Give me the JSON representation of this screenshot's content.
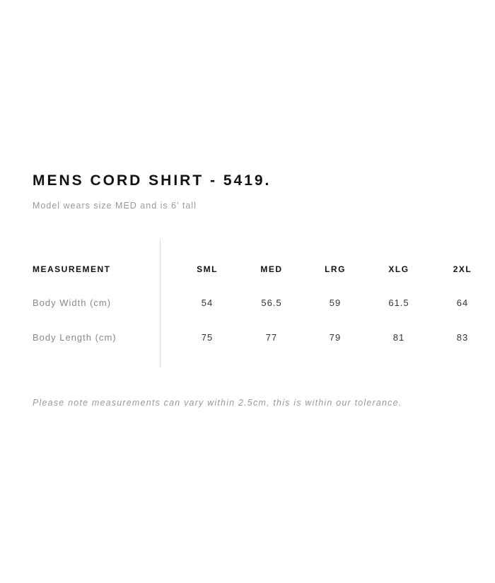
{
  "title": "MENS CORD SHIRT - 5419.",
  "subtitle": "Model wears size MED and is 6' tall",
  "table": {
    "header_label": "MEASUREMENT",
    "sizes": [
      "SML",
      "MED",
      "LRG",
      "XLG",
      "2XL"
    ],
    "rows": [
      {
        "label": "Body Width (cm)",
        "values": [
          "54",
          "56.5",
          "59",
          "61.5",
          "64"
        ]
      },
      {
        "label": "Body Length (cm)",
        "values": [
          "75",
          "77",
          "79",
          "81",
          "83"
        ]
      }
    ]
  },
  "note": "Please note measurements can vary within 2.5cm, this is within our tolerance."
}
